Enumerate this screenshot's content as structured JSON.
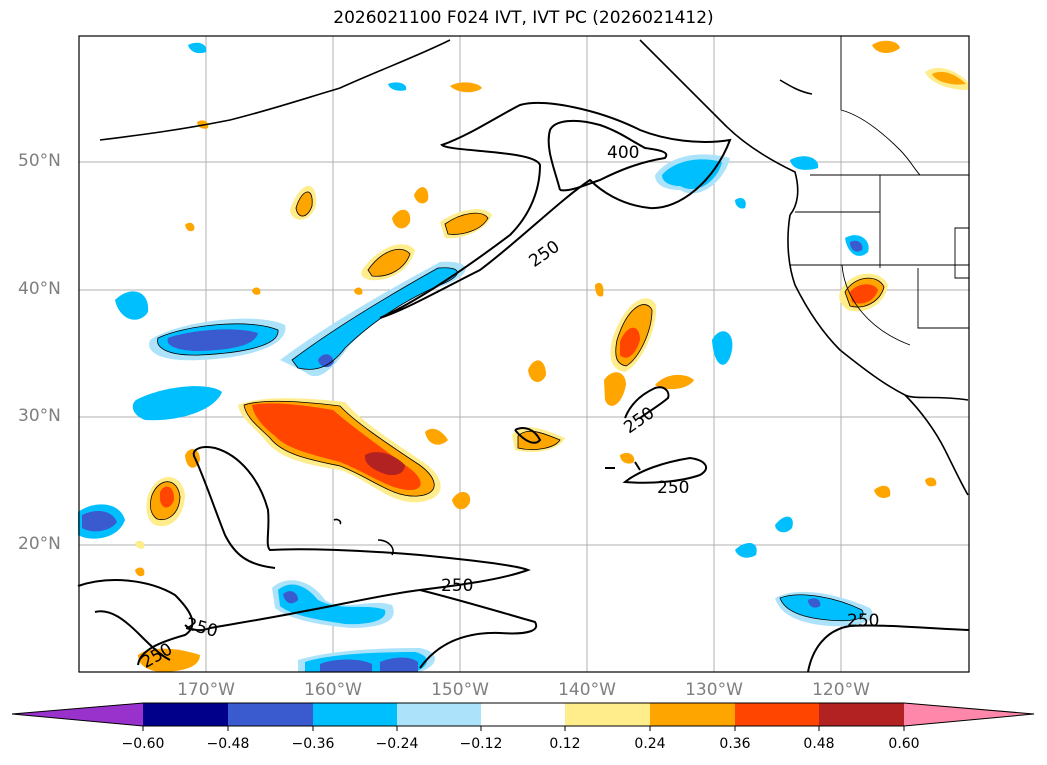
{
  "title": "2026021100 F024 IVT, IVT PC (2026021412)",
  "lat_labels": [
    "50°N",
    "40°N",
    "30°N",
    "20°N"
  ],
  "lon_labels": [
    "170°W",
    "160°W",
    "150°W",
    "140°W",
    "130°W",
    "120°W"
  ],
  "contour_labels": [
    "400",
    "250",
    "250",
    "250",
    "250",
    "250",
    "250",
    "250"
  ],
  "colorbar": {
    "ticks": [
      "−0.60",
      "−0.48",
      "−0.36",
      "−0.24",
      "−0.12",
      "0.12",
      "0.24",
      "0.36",
      "0.48",
      "0.60"
    ],
    "colors": [
      "#9932cc",
      "#00008b",
      "#3a5bcf",
      "#00bfff",
      "#ade3fa",
      "#ffffff",
      "#ffec8b",
      "#ffa500",
      "#ff4500",
      "#b22222",
      "#ff88aa"
    ]
  },
  "chart_data": {
    "type": "map",
    "title": "2026021100 F024 IVT, IVT PC (2026021412)",
    "lat_range": [
      10,
      60
    ],
    "lon_range": [
      -180,
      -110
    ],
    "lat_ticks": [
      50,
      40,
      30,
      20
    ],
    "lon_ticks": [
      -170,
      -160,
      -150,
      -140,
      -130,
      -120
    ],
    "ivt_contours": [
      250,
      400
    ],
    "pc_levels": [
      -0.6,
      -0.48,
      -0.36,
      -0.24,
      -0.12,
      0.12,
      0.24,
      0.36,
      0.48,
      0.6
    ]
  }
}
